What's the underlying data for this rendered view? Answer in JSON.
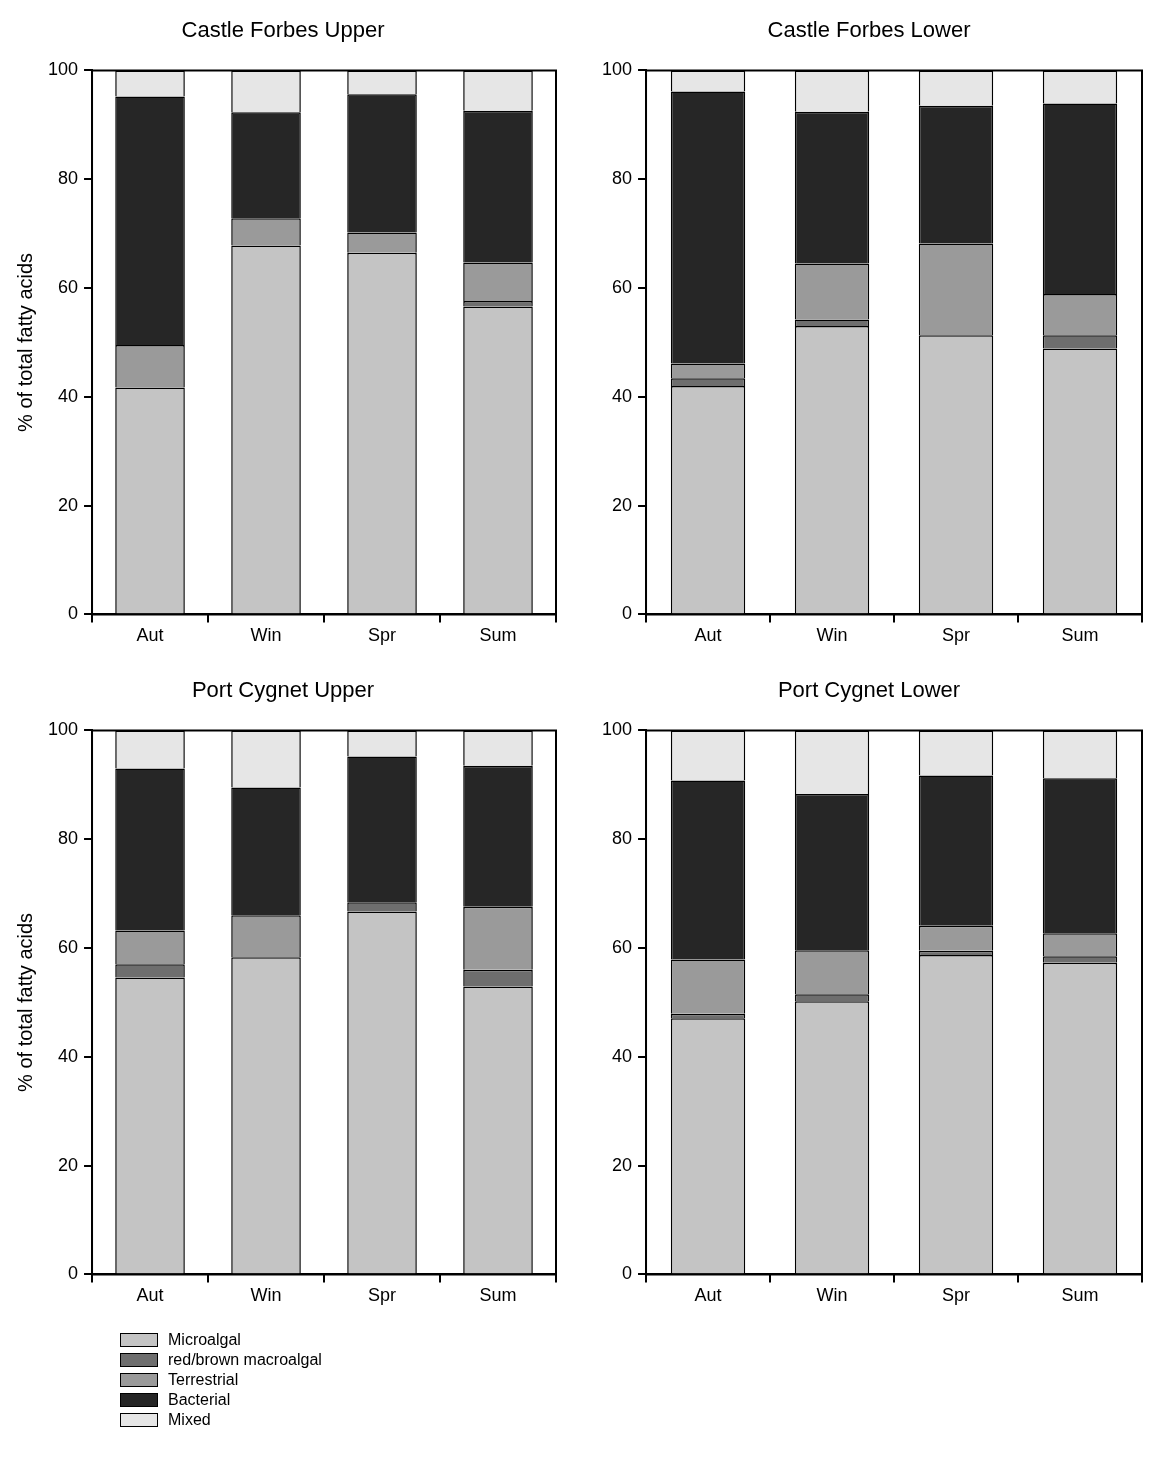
{
  "chart_data": [
    {
      "type": "bar",
      "title": "Castle Forbes Upper",
      "ylabel": "% of total fatty acids",
      "categories": [
        "Aut",
        "Win",
        "Spr",
        "Sum"
      ],
      "stacked": true,
      "ylim": [
        0,
        100
      ],
      "yticks": [
        0,
        20,
        40,
        60,
        80,
        100
      ],
      "grid": false,
      "legend": false,
      "series": [
        {
          "color": "#c4c4c4",
          "values": [
            41.7,
            67.8,
            66.5,
            56.6
          ]
        },
        {
          "color": "#6e6e6e",
          "values": [
            0,
            0,
            0,
            1.0
          ]
        },
        {
          "color": "#9a9a9a",
          "values": [
            7.8,
            5.0,
            3.7,
            7.1
          ]
        },
        {
          "color": "#262626",
          "values": [
            45.7,
            19.5,
            25.4,
            27.9
          ]
        },
        {
          "color": "#e6e6e6",
          "values": [
            4.8,
            7.7,
            4.4,
            7.4
          ]
        }
      ]
    },
    {
      "type": "bar",
      "title": "Castle Forbes Lower",
      "categories": [
        "Aut",
        "Win",
        "Spr",
        "Sum"
      ],
      "stacked": true,
      "ylim": [
        0,
        100
      ],
      "yticks": [
        0,
        20,
        40,
        60,
        80,
        100
      ],
      "grid": false,
      "legend": false,
      "series": [
        {
          "color": "#c4c4c4",
          "values": [
            42.0,
            53.0,
            51.3,
            48.9
          ]
        },
        {
          "color": "#6e6e6e",
          "values": [
            1.4,
            1.2,
            0,
            2.4
          ]
        },
        {
          "color": "#9a9a9a",
          "values": [
            2.7,
            10.3,
            16.9,
            7.6
          ]
        },
        {
          "color": "#262626",
          "values": [
            50.0,
            27.9,
            25.3,
            35.0
          ]
        },
        {
          "color": "#e6e6e6",
          "values": [
            3.9,
            7.6,
            6.5,
            6.1
          ]
        }
      ]
    },
    {
      "type": "bar",
      "title": "Port Cygnet Upper",
      "ylabel": "% of total fatty acids",
      "categories": [
        "Aut",
        "Win",
        "Spr",
        "Sum"
      ],
      "stacked": true,
      "ylim": [
        0,
        100
      ],
      "yticks": [
        0,
        20,
        40,
        60,
        80,
        100
      ],
      "grid": false,
      "legend": "bottom",
      "series": [
        {
          "name": "Microalgal",
          "color": "#c4c4c4",
          "values": [
            54.6,
            58.3,
            66.7,
            52.9
          ]
        },
        {
          "name": "red/brown macroalgal",
          "color": "#6e6e6e",
          "values": [
            2.4,
            0,
            1.7,
            3.1
          ]
        },
        {
          "name": "Terrestrial",
          "color": "#9a9a9a",
          "values": [
            6.2,
            7.7,
            0,
            11.6
          ]
        },
        {
          "name": "Bacterial",
          "color": "#262626",
          "values": [
            29.8,
            23.5,
            26.8,
            25.9
          ]
        },
        {
          "name": "Mixed",
          "color": "#e6e6e6",
          "values": [
            7.0,
            10.5,
            4.8,
            6.5
          ]
        }
      ]
    },
    {
      "type": "bar",
      "title": "Port Cygnet Lower",
      "categories": [
        "Aut",
        "Win",
        "Spr",
        "Sum"
      ],
      "stacked": true,
      "ylim": [
        0,
        100
      ],
      "yticks": [
        0,
        20,
        40,
        60,
        80,
        100
      ],
      "grid": false,
      "legend": false,
      "series": [
        {
          "color": "#c4c4c4",
          "values": [
            47.1,
            50.2,
            58.7,
            57.3
          ]
        },
        {
          "color": "#6e6e6e",
          "values": [
            0.8,
            1.3,
            0.8,
            1.2
          ]
        },
        {
          "color": "#9a9a9a",
          "values": [
            10.0,
            8.1,
            4.6,
            4.2
          ]
        },
        {
          "color": "#262626",
          "values": [
            32.9,
            28.7,
            27.6,
            28.5
          ]
        },
        {
          "color": "#e6e6e6",
          "values": [
            9.2,
            11.7,
            8.3,
            8.8
          ]
        }
      ]
    }
  ]
}
